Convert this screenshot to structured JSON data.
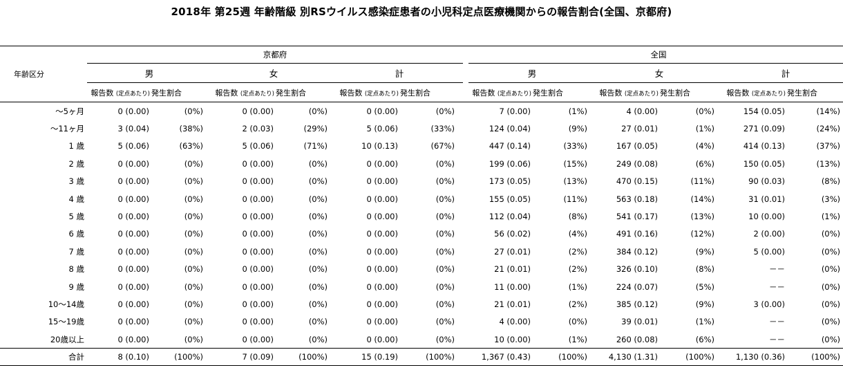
{
  "title": "2018年 第25週 年齢階級 別RSウイルス感染症患者の小児科定点医療機関からの報告割合(全国、京都府)",
  "header": {
    "age_label": "年齢区分",
    "regions": [
      "京都府",
      "全国"
    ],
    "sexes": [
      "男",
      "女",
      "計"
    ],
    "report_count": "報告数",
    "per_site": "(定点あたり)",
    "ratio": "発生割合"
  },
  "rows": [
    {
      "age": "～5ヶ月",
      "cells": [
        [
          "0 (0.00)",
          "(0%)"
        ],
        [
          "0 (0.00)",
          "(0%)"
        ],
        [
          "0 (0.00)",
          "(0%)"
        ],
        [
          "7 (0.00)",
          "(1%)"
        ],
        [
          "4 (0.00)",
          "(0%)"
        ],
        [
          "154 (0.05)",
          "(14%)"
        ]
      ]
    },
    {
      "age": "～11ヶ月",
      "cells": [
        [
          "3 (0.04)",
          "(38%)"
        ],
        [
          "2 (0.03)",
          "(29%)"
        ],
        [
          "5 (0.06)",
          "(33%)"
        ],
        [
          "124 (0.04)",
          "(9%)"
        ],
        [
          "27 (0.01)",
          "(1%)"
        ],
        [
          "271 (0.09)",
          "(24%)"
        ]
      ]
    },
    {
      "age": "1 歳",
      "cells": [
        [
          "5 (0.06)",
          "(63%)"
        ],
        [
          "5 (0.06)",
          "(71%)"
        ],
        [
          "10 (0.13)",
          "(67%)"
        ],
        [
          "447 (0.14)",
          "(33%)"
        ],
        [
          "167 (0.05)",
          "(4%)"
        ],
        [
          "414 (0.13)",
          "(37%)"
        ]
      ]
    },
    {
      "age": "2 歳",
      "cells": [
        [
          "0 (0.00)",
          "(0%)"
        ],
        [
          "0 (0.00)",
          "(0%)"
        ],
        [
          "0 (0.00)",
          "(0%)"
        ],
        [
          "199 (0.06)",
          "(15%)"
        ],
        [
          "249 (0.08)",
          "(6%)"
        ],
        [
          "150 (0.05)",
          "(13%)"
        ]
      ]
    },
    {
      "age": "3 歳",
      "cells": [
        [
          "0 (0.00)",
          "(0%)"
        ],
        [
          "0 (0.00)",
          "(0%)"
        ],
        [
          "0 (0.00)",
          "(0%)"
        ],
        [
          "173 (0.05)",
          "(13%)"
        ],
        [
          "470 (0.15)",
          "(11%)"
        ],
        [
          "90 (0.03)",
          "(8%)"
        ]
      ]
    },
    {
      "age": "4 歳",
      "cells": [
        [
          "0 (0.00)",
          "(0%)"
        ],
        [
          "0 (0.00)",
          "(0%)"
        ],
        [
          "0 (0.00)",
          "(0%)"
        ],
        [
          "155 (0.05)",
          "(11%)"
        ],
        [
          "563 (0.18)",
          "(14%)"
        ],
        [
          "31 (0.01)",
          "(3%)"
        ]
      ]
    },
    {
      "age": "5 歳",
      "cells": [
        [
          "0 (0.00)",
          "(0%)"
        ],
        [
          "0 (0.00)",
          "(0%)"
        ],
        [
          "0 (0.00)",
          "(0%)"
        ],
        [
          "112 (0.04)",
          "(8%)"
        ],
        [
          "541 (0.17)",
          "(13%)"
        ],
        [
          "10 (0.00)",
          "(1%)"
        ]
      ]
    },
    {
      "age": "6 歳",
      "cells": [
        [
          "0 (0.00)",
          "(0%)"
        ],
        [
          "0 (0.00)",
          "(0%)"
        ],
        [
          "0 (0.00)",
          "(0%)"
        ],
        [
          "56 (0.02)",
          "(4%)"
        ],
        [
          "491 (0.16)",
          "(12%)"
        ],
        [
          "2 (0.00)",
          "(0%)"
        ]
      ]
    },
    {
      "age": "7 歳",
      "cells": [
        [
          "0 (0.00)",
          "(0%)"
        ],
        [
          "0 (0.00)",
          "(0%)"
        ],
        [
          "0 (0.00)",
          "(0%)"
        ],
        [
          "27 (0.01)",
          "(2%)"
        ],
        [
          "384 (0.12)",
          "(9%)"
        ],
        [
          "5 (0.00)",
          "(0%)"
        ]
      ]
    },
    {
      "age": "8 歳",
      "cells": [
        [
          "0 (0.00)",
          "(0%)"
        ],
        [
          "0 (0.00)",
          "(0%)"
        ],
        [
          "0 (0.00)",
          "(0%)"
        ],
        [
          "21 (0.01)",
          "(2%)"
        ],
        [
          "326 (0.10)",
          "(8%)"
        ],
        [
          "－－",
          "(0%)"
        ]
      ]
    },
    {
      "age": "9 歳",
      "cells": [
        [
          "0 (0.00)",
          "(0%)"
        ],
        [
          "0 (0.00)",
          "(0%)"
        ],
        [
          "0 (0.00)",
          "(0%)"
        ],
        [
          "11 (0.00)",
          "(1%)"
        ],
        [
          "224 (0.07)",
          "(5%)"
        ],
        [
          "－－",
          "(0%)"
        ]
      ]
    },
    {
      "age": "10～14歳",
      "cells": [
        [
          "0 (0.00)",
          "(0%)"
        ],
        [
          "0 (0.00)",
          "(0%)"
        ],
        [
          "0 (0.00)",
          "(0%)"
        ],
        [
          "21 (0.01)",
          "(2%)"
        ],
        [
          "385 (0.12)",
          "(9%)"
        ],
        [
          "3 (0.00)",
          "(0%)"
        ]
      ]
    },
    {
      "age": "15～19歳",
      "cells": [
        [
          "0 (0.00)",
          "(0%)"
        ],
        [
          "0 (0.00)",
          "(0%)"
        ],
        [
          "0 (0.00)",
          "(0%)"
        ],
        [
          "4 (0.00)",
          "(0%)"
        ],
        [
          "39 (0.01)",
          "(1%)"
        ],
        [
          "－－",
          "(0%)"
        ]
      ]
    },
    {
      "age": "20歳以上",
      "cells": [
        [
          "0 (0.00)",
          "(0%)"
        ],
        [
          "0 (0.00)",
          "(0%)"
        ],
        [
          "0 (0.00)",
          "(0%)"
        ],
        [
          "10 (0.00)",
          "(1%)"
        ],
        [
          "260 (0.08)",
          "(6%)"
        ],
        [
          "－－",
          "(0%)"
        ]
      ]
    }
  ],
  "total": {
    "age": "合計",
    "cells": [
      [
        "8 (0.10)",
        "(100%)"
      ],
      [
        "7 (0.09)",
        "(100%)"
      ],
      [
        "15 (0.19)",
        "(100%)"
      ],
      [
        "1,367 (0.43)",
        "(100%)"
      ],
      [
        "4,130 (1.31)",
        "(100%)"
      ],
      [
        "1,130 (0.36)",
        "(100%)"
      ]
    ]
  }
}
